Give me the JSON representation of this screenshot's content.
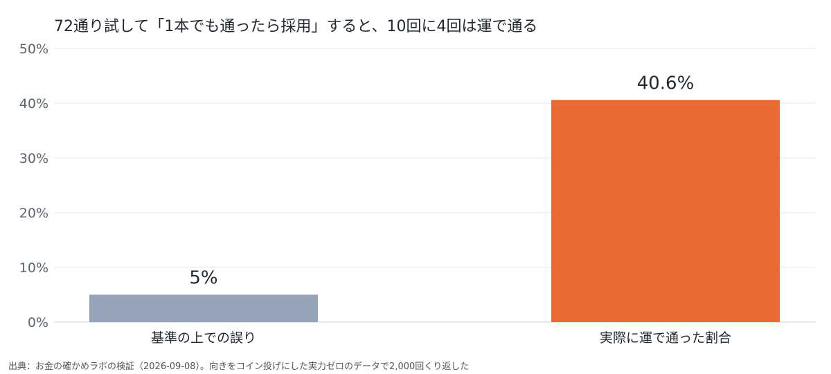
{
  "title": "72通り試して「1本でも通ったら採用」すると、10回に4回は運で通る",
  "source": "出典：お金の確かめラボの検証（2026-09-08）。向きをコイン投げにした実力ゼロのデータで2,000回くり返した",
  "chart_data": {
    "type": "bar",
    "categories": [
      "基準の上での誤り",
      "実際に運で通った割合"
    ],
    "values": [
      5,
      40.6
    ],
    "data_labels": [
      "5%",
      "40.6%"
    ],
    "colors": [
      "#97a3b8",
      "#ea6a35"
    ],
    "ylim": [
      0,
      50
    ],
    "yticks": [
      0,
      10,
      20,
      30,
      40,
      50
    ],
    "ytick_labels": [
      "0%",
      "10%",
      "20%",
      "30%",
      "40%",
      "50%"
    ],
    "grid": true
  }
}
